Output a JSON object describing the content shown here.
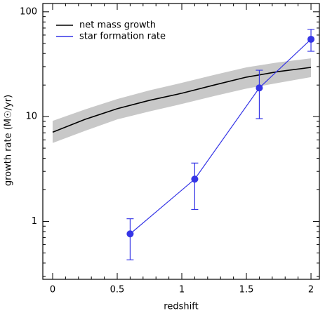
{
  "chart_data": {
    "type": "line",
    "xlabel": "redshift",
    "ylabel": "growth rate (M☉/yr)",
    "xlim": [
      -0.076,
      2.065
    ],
    "ylim": [
      0.28,
      120
    ],
    "log_y": true,
    "xticks": [
      0,
      0.5,
      1,
      1.5,
      2
    ],
    "yticks": [
      1,
      10,
      100
    ],
    "xminorticks": [
      0.1,
      0.2,
      0.3,
      0.4,
      0.6,
      0.7,
      0.8,
      0.9,
      1.1,
      1.2,
      1.3,
      1.4,
      1.6,
      1.7,
      1.8,
      1.9
    ],
    "yminorticks": [
      0.3,
      0.4,
      0.5,
      0.6,
      0.7,
      0.8,
      0.9,
      2,
      3,
      4,
      5,
      6,
      7,
      8,
      9,
      20,
      30,
      40,
      50,
      60,
      70,
      80,
      90
    ],
    "legend": "upper left",
    "series": [
      {
        "name": "net mass growth",
        "color": "#000000",
        "band_color": "#c8c8c8",
        "x": [
          0,
          0.25,
          0.5,
          0.75,
          1.0,
          1.25,
          1.5,
          1.75,
          2.0
        ],
        "values": [
          7.1,
          9.4,
          11.9,
          14.3,
          16.7,
          20,
          23.8,
          26.9,
          29.5
        ],
        "band_lower": [
          5.6,
          7.3,
          9.4,
          11.2,
          13.2,
          15.7,
          18.5,
          21,
          23.8
        ],
        "band_upper": [
          9.1,
          11.7,
          14.7,
          17.8,
          21,
          25,
          29.5,
          33,
          36
        ]
      },
      {
        "name": "star formation rate",
        "color": "#3535e6",
        "x": [
          0.6,
          1.1,
          1.6,
          2.0
        ],
        "values": [
          0.76,
          2.53,
          18.8,
          54.7
        ],
        "error_low": [
          0.43,
          1.3,
          9.55,
          42
        ],
        "error_high": [
          1.06,
          3.6,
          27.7,
          68
        ]
      }
    ]
  }
}
